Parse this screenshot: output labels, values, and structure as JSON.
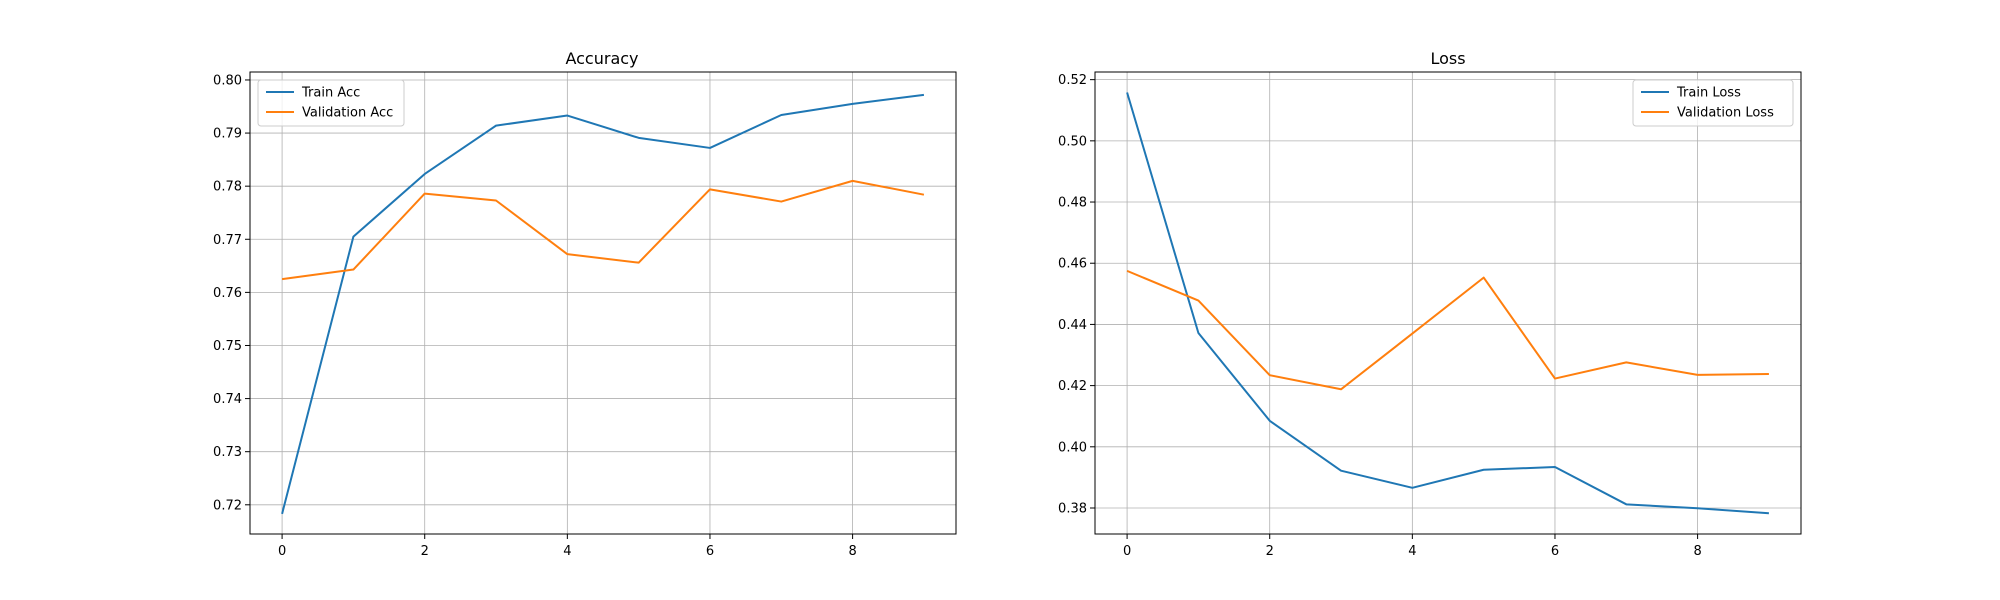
{
  "chart_data": [
    {
      "type": "line",
      "title": "Accuracy",
      "xlabel": "",
      "ylabel": "",
      "x": [
        0,
        1,
        2,
        3,
        4,
        5,
        6,
        7,
        8,
        9
      ],
      "xlim": [
        -0.45,
        9.45
      ],
      "ylim": [
        0.7145,
        0.8015
      ],
      "x_ticks": [
        0,
        2,
        4,
        6,
        8
      ],
      "x_tick_labels": [
        "0",
        "2",
        "4",
        "6",
        "8"
      ],
      "y_ticks": [
        0.72,
        0.73,
        0.74,
        0.75,
        0.76,
        0.77,
        0.78,
        0.79,
        0.8
      ],
      "y_tick_labels": [
        "0.72",
        "0.73",
        "0.74",
        "0.75",
        "0.76",
        "0.77",
        "0.78",
        "0.79",
        "0.80"
      ],
      "grid": true,
      "legend_position": "upper-left",
      "series": [
        {
          "name": "Train Acc",
          "color": "#1f77b4",
          "values": [
            0.7183,
            0.7705,
            0.7823,
            0.7914,
            0.7933,
            0.7891,
            0.7872,
            0.7934,
            0.7955,
            0.7972
          ]
        },
        {
          "name": "Validation Acc",
          "color": "#ff7f0e",
          "values": [
            0.7625,
            0.7643,
            0.7786,
            0.7773,
            0.7672,
            0.7656,
            0.7794,
            0.7771,
            0.781,
            0.7784
          ]
        }
      ]
    },
    {
      "type": "line",
      "title": "Loss",
      "xlabel": "",
      "ylabel": "",
      "x": [
        0,
        1,
        2,
        3,
        4,
        5,
        6,
        7,
        8,
        9
      ],
      "xlim": [
        -0.45,
        9.45
      ],
      "ylim": [
        0.3715,
        0.5225
      ],
      "x_ticks": [
        0,
        2,
        4,
        6,
        8
      ],
      "x_tick_labels": [
        "0",
        "2",
        "4",
        "6",
        "8"
      ],
      "y_ticks": [
        0.38,
        0.4,
        0.42,
        0.44,
        0.46,
        0.48,
        0.5,
        0.52
      ],
      "y_tick_labels": [
        "0.38",
        "0.40",
        "0.42",
        "0.44",
        "0.46",
        "0.48",
        "0.50",
        "0.52"
      ],
      "grid": true,
      "legend_position": "upper-right",
      "series": [
        {
          "name": "Train Loss",
          "color": "#1f77b4",
          "values": [
            0.5158,
            0.4372,
            0.4085,
            0.3922,
            0.3866,
            0.3925,
            0.3934,
            0.3812,
            0.3799,
            0.3783
          ]
        },
        {
          "name": "Validation Loss",
          "color": "#ff7f0e",
          "values": [
            0.4575,
            0.4478,
            0.4234,
            0.4188,
            0.437,
            0.4553,
            0.4223,
            0.4276,
            0.4235,
            0.4238
          ]
        }
      ]
    }
  ]
}
